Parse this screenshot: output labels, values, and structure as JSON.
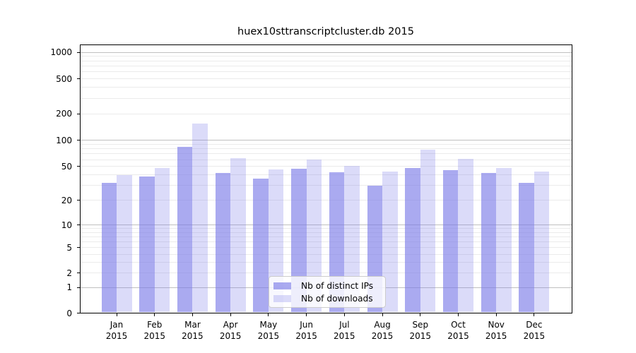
{
  "title": "huex10sttranscriptcluster.db 2015",
  "chart_data": {
    "type": "bar",
    "title": "huex10sttranscriptcluster.db 2015",
    "categories": [
      "Jan",
      "Feb",
      "Mar",
      "Apr",
      "May",
      "Jun",
      "Jul",
      "Aug",
      "Sep",
      "Oct",
      "Nov",
      "Dec"
    ],
    "category_year": "2015",
    "series": [
      {
        "name": "Nb of distinct IPs",
        "values": [
          32,
          38,
          84,
          42,
          36,
          47,
          43,
          30,
          48,
          45,
          42,
          32
        ]
      },
      {
        "name": "Nb of downloads",
        "values": [
          40,
          48,
          155,
          62,
          46,
          60,
          51,
          44,
          78,
          61,
          48,
          44
        ]
      }
    ],
    "xlabel": "",
    "ylabel": "",
    "yscale": "pseudo-log (log10 of value+1.2)",
    "ylim": [
      0,
      1000
    ],
    "yticks": [
      1000,
      500,
      200,
      100,
      50,
      20,
      10,
      5,
      2,
      1,
      0
    ],
    "major_gridlines": [
      1,
      10,
      100,
      1000
    ],
    "minor_gridlines": [
      2,
      3,
      4,
      5,
      6,
      7,
      8,
      9,
      20,
      30,
      40,
      50,
      60,
      70,
      80,
      90,
      200,
      300,
      400,
      500,
      600,
      700,
      800,
      900
    ],
    "grid": true,
    "legend_position": "lower center"
  },
  "legend": {
    "items": [
      {
        "label": "Nb of distinct IPs"
      },
      {
        "label": "Nb of downloads"
      }
    ]
  },
  "colors": {
    "bar_base": "#7a7ae8",
    "ips_alpha": 0.64,
    "downloads_alpha": 0.27,
    "ips_solid": "#a7a7f0",
    "downloads_solid": "#dadaf9",
    "grid_major": "#c0c0c0",
    "grid_minor": "#ebebeb",
    "axis": "#000000",
    "text": "#000000"
  }
}
